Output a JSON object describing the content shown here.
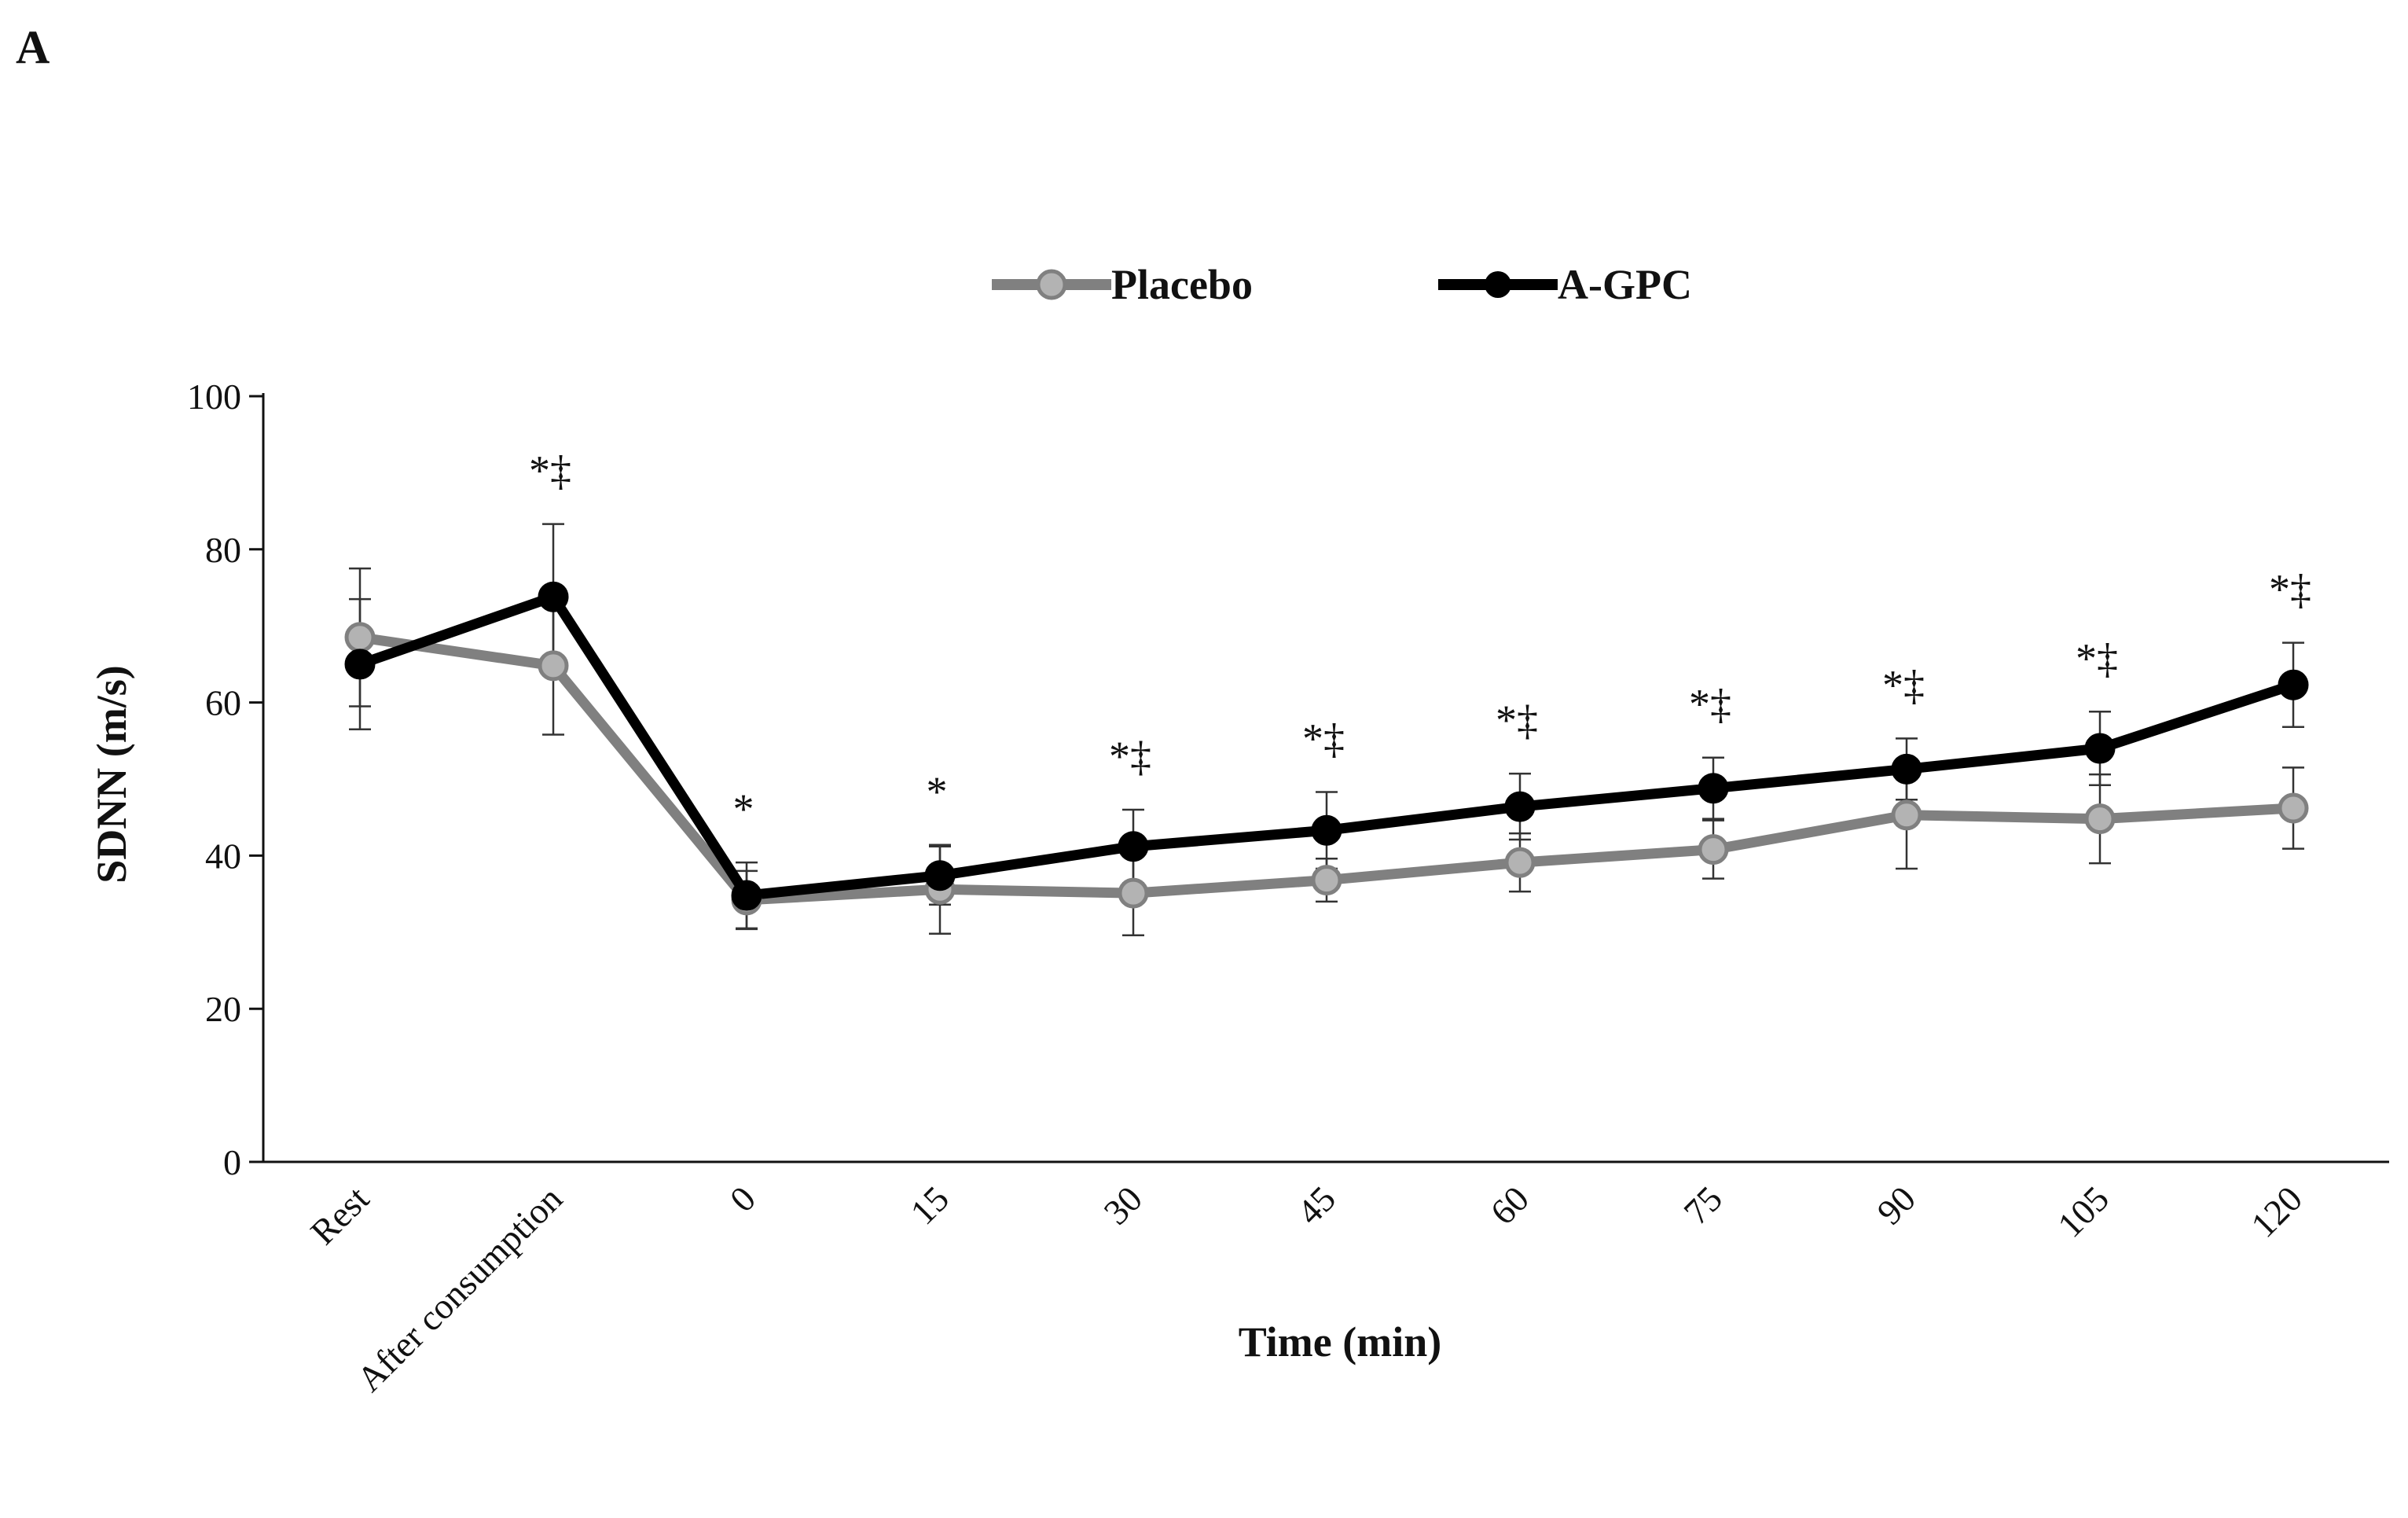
{
  "panel_label": "A",
  "colors": {
    "placebo": "#808080",
    "placebo_marker": "#b3b3b3",
    "agpc": "#000000",
    "axis": "#111111"
  },
  "chart_data": {
    "type": "line",
    "title": "",
    "xlabel": "Time (min)",
    "ylabel": "SDNN (m/s)",
    "ylim": [
      0,
      100
    ],
    "yticks": [
      "0",
      "20",
      "40",
      "60",
      "80",
      "100"
    ],
    "categories": [
      "Rest",
      "After consumption",
      "0",
      "15",
      "30",
      "45",
      "60",
      "75",
      "90",
      "105",
      "120"
    ],
    "legend_position": "top-center",
    "series": [
      {
        "name": "Placebo",
        "values": [
          68.5,
          64.8,
          34.2,
          35.6,
          35.1,
          36.8,
          39.1,
          40.8,
          45.3,
          44.8,
          46.2
        ],
        "error": [
          9.0,
          9.0,
          3.8,
          5.8,
          5.5,
          2.8,
          3.8,
          3.8,
          7.0,
          5.8,
          5.3
        ]
      },
      {
        "name": "A-GPC",
        "values": [
          65.0,
          73.8,
          34.8,
          37.4,
          41.2,
          43.3,
          46.4,
          48.8,
          51.3,
          54.0,
          62.3
        ],
        "error": [
          8.5,
          9.5,
          4.3,
          3.8,
          4.8,
          5.0,
          4.3,
          4.0,
          4.0,
          4.8,
          5.5
        ]
      }
    ],
    "annotations": [
      "",
      "*‡",
      "*",
      "*",
      "*‡",
      "*‡",
      "*‡",
      "*‡",
      "*‡",
      "*‡",
      "*‡"
    ]
  }
}
